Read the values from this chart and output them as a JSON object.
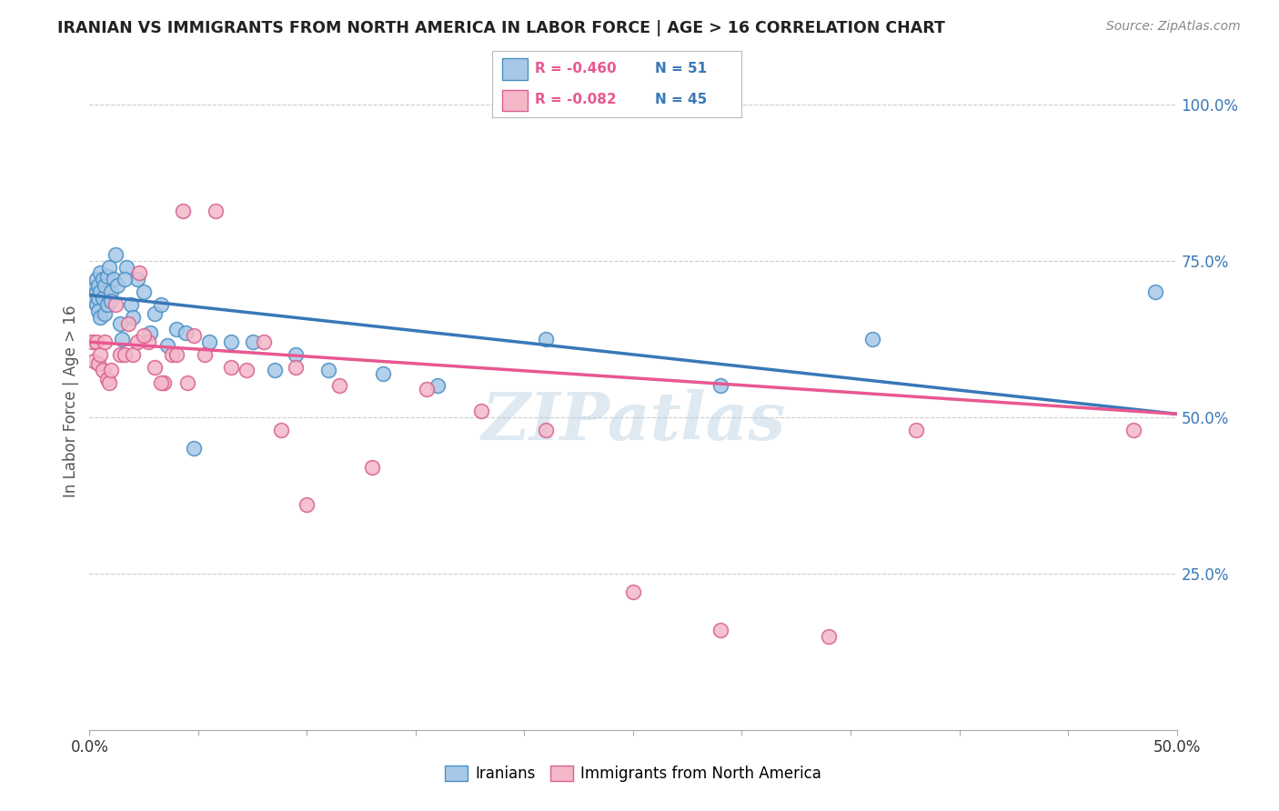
{
  "title": "IRANIAN VS IMMIGRANTS FROM NORTH AMERICA IN LABOR FORCE | AGE > 16 CORRELATION CHART",
  "source": "Source: ZipAtlas.com",
  "ylabel": "In Labor Force | Age > 16",
  "xlim": [
    0.0,
    0.5
  ],
  "ylim": [
    0.0,
    1.05
  ],
  "x_ticks": [
    0.0,
    0.05,
    0.1,
    0.15,
    0.2,
    0.25,
    0.3,
    0.35,
    0.4,
    0.45,
    0.5
  ],
  "y_ticks_right": [
    0.0,
    0.25,
    0.5,
    0.75,
    1.0
  ],
  "y_tick_labels_right": [
    "",
    "25.0%",
    "50.0%",
    "75.0%",
    "100.0%"
  ],
  "blue_R": -0.46,
  "blue_N": 51,
  "pink_R": -0.082,
  "pink_N": 45,
  "blue_color": "#a8c8e8",
  "pink_color": "#f4b8c8",
  "blue_edge_color": "#4a90c4",
  "pink_edge_color": "#d86090",
  "blue_line_color": "#3878b8",
  "pink_line_color": "#e85890",
  "watermark": "ZIPatlas",
  "blue_line_x0": 0.0,
  "blue_line_y0": 0.695,
  "blue_line_x1": 0.5,
  "blue_line_y1": 0.505,
  "pink_line_x0": 0.0,
  "pink_line_y0": 0.62,
  "pink_line_x1": 0.5,
  "pink_line_y1": 0.505,
  "blue_scatter_x": [
    0.001,
    0.002,
    0.002,
    0.003,
    0.003,
    0.003,
    0.004,
    0.004,
    0.004,
    0.005,
    0.005,
    0.005,
    0.006,
    0.006,
    0.007,
    0.007,
    0.008,
    0.008,
    0.009,
    0.01,
    0.01,
    0.011,
    0.012,
    0.013,
    0.014,
    0.015,
    0.017,
    0.019,
    0.022,
    0.025,
    0.028,
    0.03,
    0.033,
    0.036,
    0.04,
    0.044,
    0.048,
    0.055,
    0.065,
    0.075,
    0.085,
    0.095,
    0.11,
    0.135,
    0.16,
    0.21,
    0.29,
    0.36,
    0.49,
    0.016,
    0.02
  ],
  "blue_scatter_y": [
    0.695,
    0.705,
    0.685,
    0.7,
    0.72,
    0.68,
    0.71,
    0.69,
    0.67,
    0.73,
    0.7,
    0.66,
    0.72,
    0.69,
    0.71,
    0.665,
    0.725,
    0.68,
    0.74,
    0.7,
    0.685,
    0.72,
    0.76,
    0.71,
    0.65,
    0.625,
    0.74,
    0.68,
    0.72,
    0.7,
    0.635,
    0.665,
    0.68,
    0.615,
    0.64,
    0.635,
    0.45,
    0.62,
    0.62,
    0.62,
    0.575,
    0.6,
    0.575,
    0.57,
    0.55,
    0.625,
    0.55,
    0.625,
    0.7,
    0.72,
    0.66
  ],
  "pink_scatter_x": [
    0.001,
    0.002,
    0.003,
    0.004,
    0.005,
    0.006,
    0.007,
    0.008,
    0.009,
    0.01,
    0.012,
    0.014,
    0.016,
    0.018,
    0.02,
    0.023,
    0.027,
    0.03,
    0.034,
    0.038,
    0.043,
    0.048,
    0.053,
    0.058,
    0.065,
    0.072,
    0.08,
    0.088,
    0.095,
    0.1,
    0.115,
    0.13,
    0.155,
    0.18,
    0.21,
    0.25,
    0.29,
    0.34,
    0.38,
    0.48,
    0.022,
    0.025,
    0.033,
    0.04,
    0.045
  ],
  "pink_scatter_y": [
    0.62,
    0.59,
    0.62,
    0.585,
    0.6,
    0.575,
    0.62,
    0.56,
    0.555,
    0.575,
    0.68,
    0.6,
    0.6,
    0.65,
    0.6,
    0.73,
    0.62,
    0.58,
    0.555,
    0.6,
    0.83,
    0.63,
    0.6,
    0.83,
    0.58,
    0.575,
    0.62,
    0.48,
    0.58,
    0.36,
    0.55,
    0.42,
    0.545,
    0.51,
    0.48,
    0.22,
    0.16,
    0.15,
    0.48,
    0.48,
    0.62,
    0.63,
    0.555,
    0.6,
    0.555
  ]
}
